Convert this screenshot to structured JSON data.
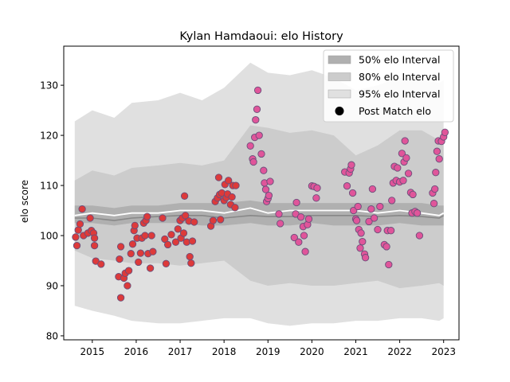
{
  "chart_data": {
    "type": "scatter",
    "title": "Kylan Hamdaoui: elo History",
    "ylabel": "elo score",
    "xlabel": "",
    "xlim": [
      2014.35,
      2023.35
    ],
    "ylim": [
      79.2,
      137.8
    ],
    "xticks": [
      2015,
      2016,
      2017,
      2018,
      2019,
      2020,
      2021,
      2022,
      2023
    ],
    "xtick_labels": [
      "2015",
      "2016",
      "2017",
      "2018",
      "2019",
      "2020",
      "2021",
      "2022",
      "2023"
    ],
    "yticks": [
      80,
      90,
      100,
      110,
      120,
      130
    ],
    "ytick_labels": [
      "80",
      "90",
      "100",
      "110",
      "120",
      "130"
    ],
    "legend": {
      "placement": "top-right",
      "entries": [
        "50% elo Interval",
        "80% elo Interval",
        "95% elo Interval",
        "Post Match elo"
      ]
    },
    "colors": {
      "band_95": "#e0e0e0",
      "band_80": "#cccccc",
      "band_50": "#b0b0b0",
      "median_line": "#888888",
      "mean_line": "#ffffff",
      "points_early": "#dd3a3a",
      "points_late": "#e0559a",
      "point_edge": "#6a4f7a"
    },
    "bands": {
      "x": [
        2014.6,
        2015.0,
        2015.5,
        2015.9,
        2016.5,
        2017.0,
        2017.5,
        2018.0,
        2018.6,
        2019.0,
        2019.5,
        2020.0,
        2020.5,
        2021.0,
        2021.5,
        2022.0,
        2022.5,
        2022.9,
        2023.0
      ],
      "p95_high": [
        122.8,
        125.0,
        123.5,
        126.5,
        127.0,
        128.5,
        127.0,
        129.5,
        134.5,
        132.5,
        132.0,
        133.0,
        131.5,
        129.0,
        130.0,
        131.5,
        131.0,
        130.5,
        131.0
      ],
      "p80_high": [
        111.0,
        113.0,
        112.0,
        113.5,
        114.0,
        114.5,
        114.0,
        115.0,
        122.0,
        121.5,
        120.5,
        121.0,
        120.0,
        116.0,
        118.0,
        121.0,
        121.0,
        119.0,
        119.5
      ],
      "p50_high": [
        106.0,
        106.0,
        105.5,
        106.0,
        106.0,
        106.5,
        106.5,
        106.5,
        107.0,
        106.5,
        106.5,
        106.5,
        106.5,
        106.5,
        106.5,
        106.5,
        106.5,
        106.0,
        106.0
      ],
      "p50_low": [
        102.5,
        102.5,
        102.0,
        102.5,
        102.5,
        102.5,
        102.0,
        102.0,
        102.5,
        102.0,
        102.0,
        102.5,
        102.0,
        102.0,
        102.0,
        102.5,
        102.0,
        102.0,
        102.0
      ],
      "p80_low": [
        97.0,
        95.5,
        95.0,
        94.5,
        94.5,
        94.0,
        94.5,
        95.0,
        91.0,
        90.0,
        90.5,
        90.0,
        90.0,
        90.5,
        91.0,
        89.5,
        90.0,
        90.5,
        90.0
      ],
      "p95_low": [
        86.0,
        85.0,
        84.0,
        83.0,
        82.5,
        82.5,
        83.0,
        83.5,
        83.5,
        82.5,
        82.0,
        82.5,
        82.5,
        83.0,
        83.0,
        83.5,
        83.5,
        83.0,
        83.5
      ],
      "median": [
        103.5,
        103.5,
        103.0,
        103.5,
        103.8,
        104.0,
        104.0,
        103.5,
        104.0,
        103.8,
        103.8,
        104.0,
        104.0,
        104.0,
        103.8,
        104.0,
        103.8,
        103.5,
        104.0
      ],
      "mean": [
        104.0,
        104.5,
        104.0,
        104.5,
        104.5,
        105.0,
        105.0,
        104.5,
        105.5,
        104.5,
        105.0,
        105.0,
        105.0,
        105.0,
        104.5,
        105.0,
        104.5,
        104.0,
        104.5
      ]
    },
    "series": [
      {
        "name": "Post Match elo",
        "points": [
          [
            2014.62,
            99.7
          ],
          [
            2014.65,
            98.0
          ],
          [
            2014.68,
            101.1
          ],
          [
            2014.72,
            102.3
          ],
          [
            2014.77,
            105.3
          ],
          [
            2014.8,
            100.0
          ],
          [
            2014.9,
            100.5
          ],
          [
            2014.95,
            103.5
          ],
          [
            2014.98,
            101.0
          ],
          [
            2015.03,
            100.5
          ],
          [
            2015.05,
            99.5
          ],
          [
            2015.05,
            98.0
          ],
          [
            2015.08,
            94.9
          ],
          [
            2015.2,
            94.3
          ],
          [
            2015.6,
            91.8
          ],
          [
            2015.62,
            95.3
          ],
          [
            2015.65,
            87.6
          ],
          [
            2015.65,
            97.8
          ],
          [
            2015.72,
            91.5
          ],
          [
            2015.75,
            92.5
          ],
          [
            2015.8,
            90.0
          ],
          [
            2015.83,
            93.0
          ],
          [
            2015.88,
            96.4
          ],
          [
            2015.92,
            98.3
          ],
          [
            2015.95,
            101.0
          ],
          [
            2015.97,
            102.0
          ],
          [
            2016.02,
            99.5
          ],
          [
            2016.05,
            94.7
          ],
          [
            2016.1,
            96.5
          ],
          [
            2016.13,
            99.5
          ],
          [
            2016.17,
            102.5
          ],
          [
            2016.2,
            100.0
          ],
          [
            2016.22,
            103.0
          ],
          [
            2016.25,
            103.8
          ],
          [
            2016.27,
            96.4
          ],
          [
            2016.32,
            93.5
          ],
          [
            2016.35,
            100.0
          ],
          [
            2016.38,
            96.8
          ],
          [
            2016.6,
            103.5
          ],
          [
            2016.65,
            99.3
          ],
          [
            2016.68,
            94.4
          ],
          [
            2016.72,
            98.2
          ],
          [
            2016.8,
            100.2
          ],
          [
            2016.9,
            98.7
          ],
          [
            2016.95,
            101.3
          ],
          [
            2017.0,
            103.0
          ],
          [
            2017.02,
            99.5
          ],
          [
            2017.05,
            103.5
          ],
          [
            2017.08,
            100.5
          ],
          [
            2017.1,
            107.9
          ],
          [
            2017.12,
            104.0
          ],
          [
            2017.15,
            98.7
          ],
          [
            2017.2,
            102.9
          ],
          [
            2017.22,
            95.8
          ],
          [
            2017.25,
            94.5
          ],
          [
            2017.28,
            98.9
          ],
          [
            2017.32,
            102.7
          ],
          [
            2017.7,
            101.9
          ],
          [
            2017.75,
            103.0
          ],
          [
            2017.8,
            106.8
          ],
          [
            2017.85,
            107.5
          ],
          [
            2017.88,
            111.6
          ],
          [
            2017.9,
            108.2
          ],
          [
            2017.92,
            103.2
          ],
          [
            2017.95,
            108.5
          ],
          [
            2018.0,
            107.0
          ],
          [
            2018.02,
            110.2
          ],
          [
            2018.05,
            107.6
          ],
          [
            2018.08,
            108.3
          ],
          [
            2018.1,
            111.0
          ],
          [
            2018.15,
            106.2
          ],
          [
            2018.18,
            107.7
          ],
          [
            2018.2,
            110.0
          ],
          [
            2018.25,
            105.6
          ],
          [
            2018.27,
            110.0
          ],
          [
            2018.6,
            117.9
          ],
          [
            2018.65,
            115.3
          ],
          [
            2018.67,
            114.7
          ],
          [
            2018.7,
            119.6
          ],
          [
            2018.72,
            123.1
          ],
          [
            2018.75,
            125.2
          ],
          [
            2018.77,
            129.0
          ],
          [
            2018.8,
            120.0
          ],
          [
            2018.85,
            116.3
          ],
          [
            2018.9,
            113.0
          ],
          [
            2018.92,
            110.5
          ],
          [
            2018.95,
            109.2
          ],
          [
            2018.97,
            106.8
          ],
          [
            2019.0,
            107.4
          ],
          [
            2019.02,
            108.0
          ],
          [
            2019.05,
            110.8
          ],
          [
            2019.25,
            104.3
          ],
          [
            2019.28,
            102.4
          ],
          [
            2019.6,
            99.6
          ],
          [
            2019.63,
            104.3
          ],
          [
            2019.65,
            106.6
          ],
          [
            2019.7,
            98.7
          ],
          [
            2019.75,
            103.7
          ],
          [
            2019.8,
            101.8
          ],
          [
            2019.82,
            100.0
          ],
          [
            2019.85,
            96.8
          ],
          [
            2019.9,
            102.2
          ],
          [
            2019.93,
            103.3
          ],
          [
            2020.0,
            109.9
          ],
          [
            2020.05,
            109.8
          ],
          [
            2020.1,
            107.5
          ],
          [
            2020.12,
            109.5
          ],
          [
            2020.75,
            112.7
          ],
          [
            2020.8,
            109.9
          ],
          [
            2020.85,
            112.5
          ],
          [
            2020.88,
            113.3
          ],
          [
            2020.9,
            114.1
          ],
          [
            2020.93,
            108.5
          ],
          [
            2020.95,
            105.0
          ],
          [
            2021.0,
            103.3
          ],
          [
            2021.02,
            103.0
          ],
          [
            2021.05,
            105.8
          ],
          [
            2021.07,
            101.2
          ],
          [
            2021.1,
            97.5
          ],
          [
            2021.12,
            100.5
          ],
          [
            2021.15,
            98.8
          ],
          [
            2021.2,
            96.3
          ],
          [
            2021.22,
            95.6
          ],
          [
            2021.3,
            102.8
          ],
          [
            2021.35,
            105.3
          ],
          [
            2021.38,
            109.3
          ],
          [
            2021.42,
            103.5
          ],
          [
            2021.5,
            101.2
          ],
          [
            2021.55,
            105.8
          ],
          [
            2021.65,
            98.2
          ],
          [
            2021.7,
            97.8
          ],
          [
            2021.72,
            101.0
          ],
          [
            2021.75,
            94.2
          ],
          [
            2021.8,
            101.0
          ],
          [
            2021.82,
            107.0
          ],
          [
            2021.85,
            110.5
          ],
          [
            2021.88,
            113.8
          ],
          [
            2021.92,
            111.0
          ],
          [
            2021.95,
            113.5
          ],
          [
            2022.0,
            110.7
          ],
          [
            2022.05,
            116.4
          ],
          [
            2022.08,
            111.0
          ],
          [
            2022.1,
            114.7
          ],
          [
            2022.12,
            118.9
          ],
          [
            2022.15,
            115.5
          ],
          [
            2022.2,
            112.4
          ],
          [
            2022.25,
            108.6
          ],
          [
            2022.28,
            104.5
          ],
          [
            2022.3,
            108.2
          ],
          [
            2022.35,
            104.8
          ],
          [
            2022.4,
            104.5
          ],
          [
            2022.45,
            100.0
          ],
          [
            2022.75,
            108.5
          ],
          [
            2022.78,
            106.4
          ],
          [
            2022.8,
            109.3
          ],
          [
            2022.82,
            112.6
          ],
          [
            2022.85,
            116.8
          ],
          [
            2022.88,
            118.9
          ],
          [
            2022.9,
            115.3
          ],
          [
            2022.95,
            118.8
          ],
          [
            2023.0,
            119.7
          ],
          [
            2023.03,
            120.6
          ]
        ]
      }
    ]
  }
}
